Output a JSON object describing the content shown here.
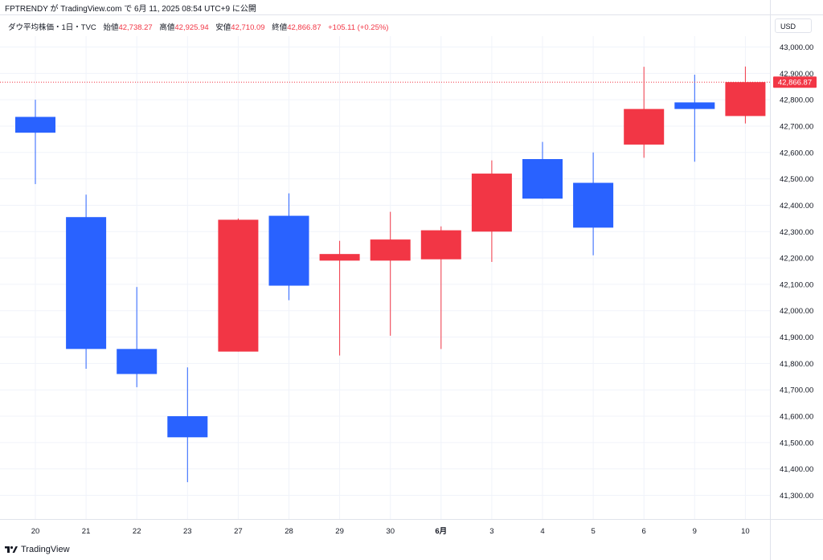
{
  "header": {
    "author": "FPTRENDY",
    "ga": "が",
    "site": "TradingView.com",
    "de": "で",
    "datetime": "6月 11, 2025 08:54 UTC+9",
    "ni": "に公開"
  },
  "legend": {
    "symbol": "ダウ平均株価・1日・TVC",
    "open_label": "始値",
    "open": "42,738.27",
    "high_label": "高値",
    "high": "42,925.94",
    "low_label": "安値",
    "low": "42,710.09",
    "close_label": "終値",
    "close": "42,866.87",
    "change": "+105.11 (+0.25%)"
  },
  "currency_button": "USD",
  "footer": {
    "brand": "TradingView",
    "logo": "tradingview-logo-icon"
  },
  "colors": {
    "up": "#f23645",
    "down": "#2962ff",
    "grid": "#f0f3fa",
    "text": "#131722",
    "last": "#f23645"
  },
  "chart_data": {
    "type": "candlestick",
    "last_price_label": "42,866.87",
    "last_price": 42866.87,
    "ylim": [
      41220,
      43080
    ],
    "y_ticks": [
      41300,
      41400,
      41500,
      41600,
      41700,
      41800,
      41900,
      42000,
      42100,
      42200,
      42300,
      42400,
      42500,
      42600,
      42700,
      42800,
      42900,
      43000
    ],
    "y_tick_labels": [
      "41,300.00",
      "41,400.00",
      "41,500.00",
      "41,600.00",
      "41,700.00",
      "41,800.00",
      "41,900.00",
      "42,000.00",
      "42,100.00",
      "42,200.00",
      "42,300.00",
      "42,400.00",
      "42,500.00",
      "42,600.00",
      "42,700.00",
      "42,800.00",
      "42,900.00",
      "43,000.00"
    ],
    "x_labels": [
      "20",
      "21",
      "22",
      "23",
      "27",
      "28",
      "29",
      "30",
      "6月",
      "3",
      "4",
      "5",
      "6",
      "9",
      "10"
    ],
    "candles": [
      {
        "label": "20",
        "open": 42735,
        "high": 42800,
        "low": 42480,
        "close": 42675
      },
      {
        "label": "21",
        "open": 42355,
        "high": 42440,
        "low": 41780,
        "close": 41855
      },
      {
        "label": "22",
        "open": 41855,
        "high": 42090,
        "low": 41710,
        "close": 41760
      },
      {
        "label": "23",
        "open": 41600,
        "high": 41785,
        "low": 41350,
        "close": 41520
      },
      {
        "label": "27",
        "open": 41845,
        "high": 42350,
        "low": 41845,
        "close": 42345
      },
      {
        "label": "28",
        "open": 42360,
        "high": 42445,
        "low": 42040,
        "close": 42095
      },
      {
        "label": "29",
        "open": 42190,
        "high": 42265,
        "low": 41830,
        "close": 42215
      },
      {
        "label": "30",
        "open": 42190,
        "high": 42375,
        "low": 41905,
        "close": 42270
      },
      {
        "label": "6月",
        "open": 42195,
        "high": 42320,
        "low": 41855,
        "close": 42305
      },
      {
        "label": "3",
        "open": 42300,
        "high": 42570,
        "low": 42185,
        "close": 42520
      },
      {
        "label": "4",
        "open": 42575,
        "high": 42640,
        "low": 42425,
        "close": 42425
      },
      {
        "label": "5",
        "open": 42485,
        "high": 42600,
        "low": 42210,
        "close": 42315
      },
      {
        "label": "6",
        "open": 42630,
        "high": 42925,
        "low": 42580,
        "close": 42765
      },
      {
        "label": "9",
        "open": 42790,
        "high": 42895,
        "low": 42565,
        "close": 42765
      },
      {
        "label": "10",
        "open": 42738.27,
        "high": 42925.94,
        "low": 42710.09,
        "close": 42866.87
      }
    ]
  }
}
